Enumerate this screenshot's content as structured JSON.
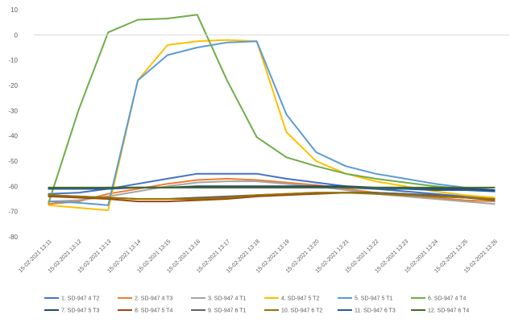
{
  "chart_data": {
    "type": "line",
    "title": "",
    "xlabel": "",
    "ylabel": "",
    "ylim": [
      -80,
      10
    ],
    "yticks": [
      10,
      0,
      -10,
      -20,
      -30,
      -40,
      -50,
      -60,
      -70,
      -80
    ],
    "grid": false,
    "legend_position": "bottom",
    "categories": [
      "15-02-2021 13:11",
      "15-02-2021 13:12",
      "15-02-2021 13:13",
      "15-02-2021 13:14",
      "15-02-2021 13:15",
      "15-02-2021 13:16",
      "15-02-2021 13:17",
      "15-02-2021 13:18",
      "15-02-2021 13:19",
      "15-02-2021 13:20",
      "15-02-2021 13:21",
      "15-02-2021 13:22",
      "15-02-2021 13:23",
      "15-02-2021 13:24",
      "15-02-2021 13:25",
      "15-02-2021 13:26"
    ],
    "series": [
      {
        "name": "1. SD-947 4 T2",
        "color": "#4472C4",
        "values": [
          -63,
          -62.5,
          -61,
          -59,
          -57,
          -55,
          -55,
          -55,
          -57,
          -58.5,
          -60,
          -61,
          -62,
          -63,
          -64,
          -65
        ]
      },
      {
        "name": "2. SD-947 4 T3",
        "color": "#ED7D31",
        "values": [
          -67,
          -66,
          -63,
          -61,
          -59,
          -57.5,
          -57,
          -57.5,
          -58.5,
          -59.5,
          -61,
          -62.5,
          -63.5,
          -64.5,
          -65.5,
          -66
        ]
      },
      {
        "name": "3. SD-947 4 T1",
        "color": "#A5A5A5",
        "values": [
          -66,
          -65.5,
          -64,
          -62,
          -60,
          -58.5,
          -58,
          -58,
          -59,
          -60,
          -61.5,
          -63,
          -64,
          -65,
          -66,
          -67
        ]
      },
      {
        "name": "4. SD-947 5 T2",
        "color": "#FFC000",
        "values": [
          -67.5,
          -68.5,
          -69.5,
          -18,
          -4,
          -2.5,
          -2,
          -2.5,
          -38.5,
          -50,
          -55,
          -58,
          -60,
          -62,
          -63.5,
          -64.5
        ]
      },
      {
        "name": "5. SD-947 5 T1",
        "color": "#5B9BD5",
        "values": [
          -66,
          -66.5,
          -67.5,
          -18,
          -8,
          -5,
          -3,
          -2.5,
          -31.5,
          -46.5,
          -52,
          -55,
          -57,
          -59,
          -60.5,
          -61.5
        ]
      },
      {
        "name": "6. SD-947 4 T4",
        "color": "#70AD47",
        "values": [
          -66.5,
          -30,
          1,
          6,
          6.5,
          8,
          -18,
          -40.5,
          -48.5,
          -52,
          -55,
          -57,
          -58.5,
          -60,
          -61,
          -62
        ]
      },
      {
        "name": "7. SD-947 5 T3",
        "color": "#264478",
        "values": [
          -61,
          -61,
          -60.5,
          -60.5,
          -60.5,
          -60,
          -60,
          -60,
          -60,
          -60,
          -60,
          -60.5,
          -60.5,
          -61,
          -61,
          -61.5
        ]
      },
      {
        "name": "8. SD-947 5 T4",
        "color": "#9E480E",
        "values": [
          -64,
          -64.5,
          -65,
          -66,
          -66,
          -65.5,
          -65,
          -64,
          -63.5,
          -63,
          -62.5,
          -62.5,
          -63,
          -64,
          -64.5,
          -65
        ]
      },
      {
        "name": "9. SD-947 6 T1",
        "color": "#636363",
        "values": [
          -63.5,
          -64,
          -64.5,
          -65,
          -65,
          -64.5,
          -64,
          -63.5,
          -63,
          -62.5,
          -62.5,
          -62.5,
          -63,
          -63.5,
          -64.5,
          -65.5
        ]
      },
      {
        "name": "10. SD-947 6 T2",
        "color": "#997300",
        "values": [
          -63.5,
          -64,
          -64.5,
          -65,
          -65,
          -65,
          -64.5,
          -63.5,
          -63,
          -62.5,
          -62.5,
          -63,
          -63.5,
          -64,
          -64.5,
          -65
        ]
      },
      {
        "name": "11. SD-947 6 T3",
        "color": "#255E91",
        "values": [
          -61,
          -61,
          -61,
          -60.5,
          -60.5,
          -60.5,
          -60.5,
          -60.5,
          -60.5,
          -60.5,
          -60.5,
          -61,
          -61,
          -61.5,
          -61.5,
          -62
        ]
      },
      {
        "name": "12. SD-947 6 T4",
        "color": "#43682B",
        "values": [
          -60.5,
          -60.5,
          -60.5,
          -60.5,
          -60.5,
          -60.5,
          -60.5,
          -60.5,
          -60.5,
          -60.5,
          -60.5,
          -60.5,
          -60.5,
          -60.5,
          -60.5,
          -60.5
        ]
      }
    ]
  }
}
